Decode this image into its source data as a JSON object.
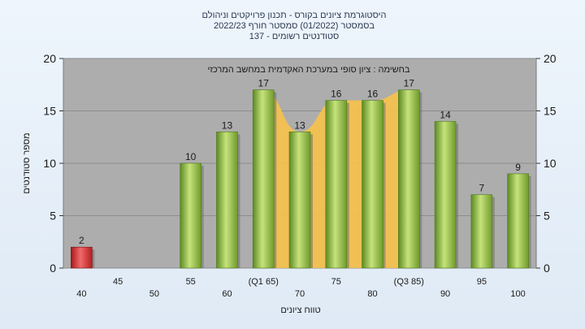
{
  "chart_data": {
    "type": "bar",
    "title_lines": [
      "היסטוגרמת ציונים בקורס - תכנון פרויקטים וניהולם",
      "בסמסטר  (01/2022)  סמסטר חורף 2022/23",
      "137 - סטודנטים רשומים"
    ],
    "annotation": "בחשימה : ציון סופי במערכת האקדמית במחשב המרכזי",
    "xlabel": "טווח ציונים",
    "ylabel": "מספר סטודנטים",
    "ylim": [
      0,
      20
    ],
    "yticks": [
      0,
      5,
      10,
      15,
      20
    ],
    "categories": [
      "40",
      "45",
      "50",
      "55",
      "60",
      "(Q1 65)",
      "70",
      "75",
      "80",
      "(Q3 85)",
      "90",
      "95",
      "100"
    ],
    "values": [
      2,
      0,
      0,
      10,
      13,
      17,
      13,
      16,
      16,
      17,
      14,
      7,
      9
    ],
    "value_labels": [
      "2",
      "",
      "",
      "10",
      "13",
      "17",
      "13",
      "16",
      "16",
      "17",
      "14",
      "7",
      "9"
    ],
    "bar_colors": [
      "#d42a2a",
      "#8ab43c",
      "#8ab43c",
      "#8ab43c",
      "#8ab43c",
      "#8ab43c",
      "#8ab43c",
      "#8ab43c",
      "#8ab43c",
      "#8ab43c",
      "#8ab43c",
      "#8ab43c",
      "#8ab43c"
    ],
    "interquartile_band": {
      "from": "(Q1 65)",
      "to": "(Q3 85)",
      "color": "#f7c24a"
    },
    "plot_background": "#adadad",
    "grid": true
  }
}
